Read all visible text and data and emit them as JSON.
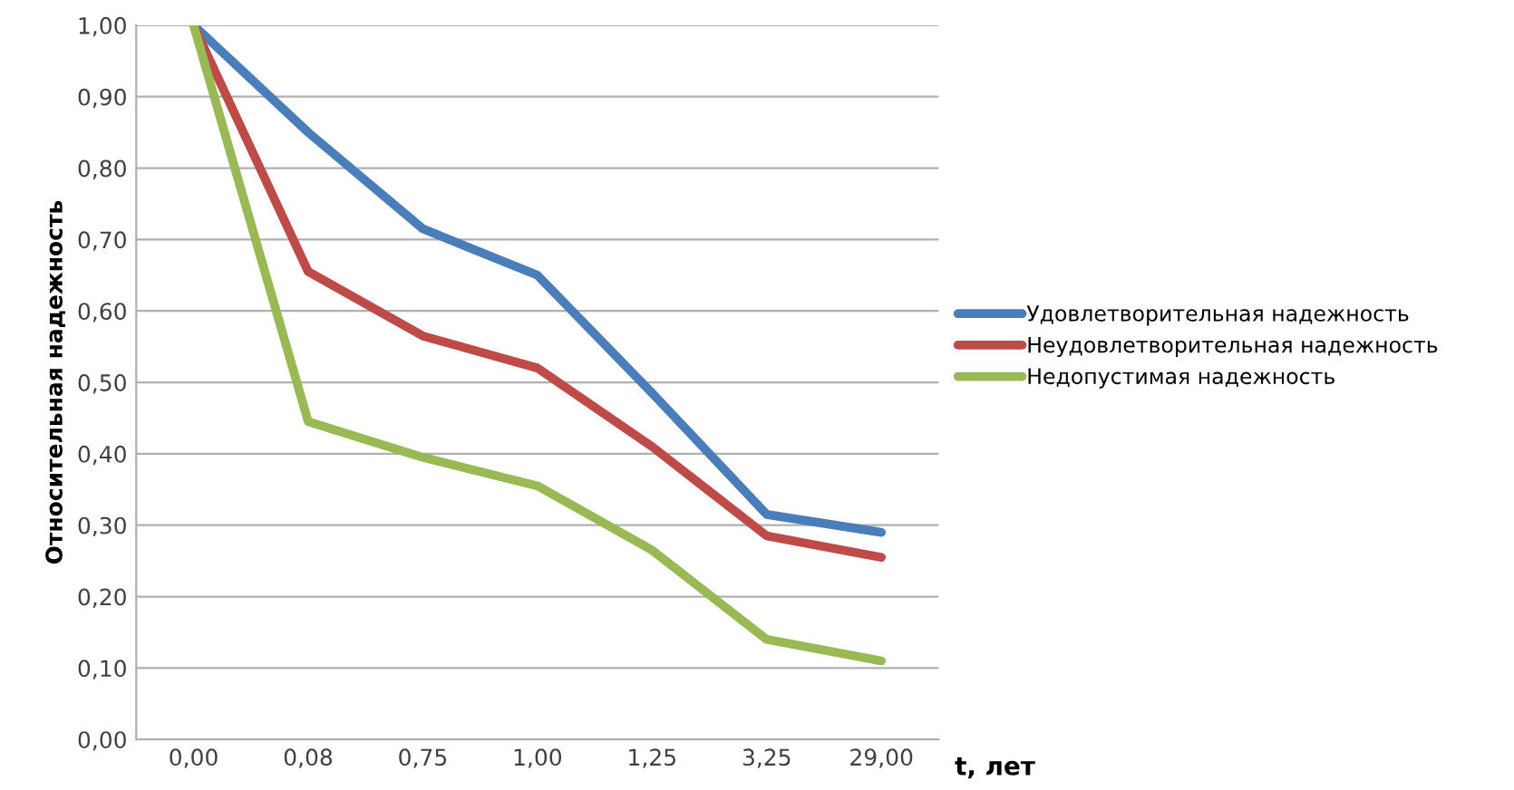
{
  "chart_data": {
    "type": "line",
    "xlabel": "t, лет",
    "ylabel": "Относительная надежность",
    "categories": [
      "0,00",
      "0,08",
      "0,75",
      "1,00",
      "1,25",
      "3,25",
      "29,00"
    ],
    "series": [
      {
        "name": "Удовлетворительная надежность",
        "color": "#4a7ebb",
        "values": [
          1.0,
          0.85,
          0.715,
          0.65,
          0.485,
          0.315,
          0.29
        ]
      },
      {
        "name": "Неудовлетворительная надежность",
        "color": "#be4b48",
        "values": [
          1.0,
          0.655,
          0.565,
          0.52,
          0.41,
          0.285,
          0.255
        ]
      },
      {
        "name": "Недопустимая надежность",
        "color": "#98b954",
        "values": [
          1.0,
          0.445,
          0.395,
          0.355,
          0.265,
          0.14,
          0.11
        ]
      }
    ],
    "ylim": [
      0,
      1
    ],
    "yticks": [
      {
        "value": 0,
        "label": "0,00"
      },
      {
        "value": 0.1,
        "label": "0,10"
      },
      {
        "value": 0.2,
        "label": "0,20"
      },
      {
        "value": 0.3,
        "label": "0,30"
      },
      {
        "value": 0.4,
        "label": "0,40"
      },
      {
        "value": 0.5,
        "label": "0,50"
      },
      {
        "value": 0.6,
        "label": "0,60"
      },
      {
        "value": 0.7,
        "label": "0,70"
      },
      {
        "value": 0.8,
        "label": "0,80"
      },
      {
        "value": 0.9,
        "label": "0,90"
      },
      {
        "value": 1.0,
        "label": "1,00"
      }
    ],
    "grid": "y",
    "legend": "right",
    "marker": "none",
    "line_style": "solid"
  }
}
